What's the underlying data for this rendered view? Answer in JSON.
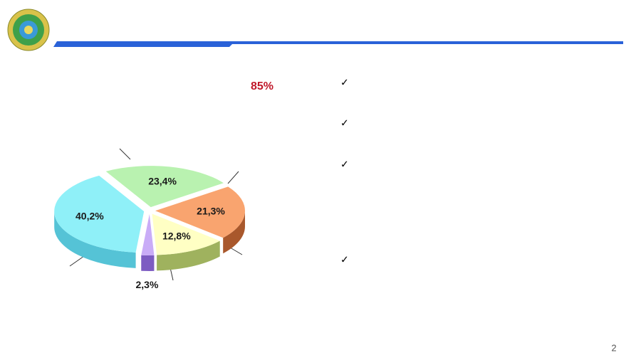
{
  "chart_data": {
    "type": "pie",
    "values": [
      23.4,
      21.3,
      12.8,
      2.3,
      40.2
    ],
    "value_labels": [
      "23,4%",
      "21,3%",
      "12,8%",
      "2,3%",
      "40,2%"
    ],
    "colors": [
      "#b9f2b0",
      "#f9a46f",
      "#ffffc4",
      "#c9acf7",
      "#8ff0f8"
    ],
    "side_colors": [
      "#7cc57a",
      "#a9582c",
      "#9fb25e",
      "#7d5cc2",
      "#55c3d6"
    ]
  },
  "slide": {
    "callout": "85%",
    "page_number": "2"
  }
}
